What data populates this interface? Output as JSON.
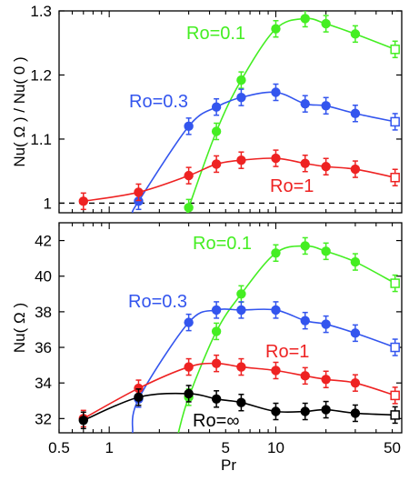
{
  "chart_data": [
    {
      "type": "line",
      "ylabel": "Nu( Ω ) / Nu( 0 )",
      "xscale": "log",
      "xlim": [
        0.5,
        57
      ],
      "ylim": [
        0.985,
        1.3
      ],
      "yticks": [
        1,
        1.1,
        1.2,
        1.3
      ],
      "ytick_labels": [
        "1",
        "1.1",
        "1.2",
        "1.3"
      ],
      "reference_line": {
        "y": 1,
        "style": "dashed"
      },
      "grid": false,
      "series": [
        {
          "name": "Ro=0.1",
          "color": "#44ee22",
          "x": [
            3,
            4.4,
            6.2,
            10,
            15,
            20,
            30,
            52
          ],
          "y": [
            0.993,
            1.112,
            1.192,
            1.272,
            1.288,
            1.28,
            1.264,
            1.24
          ],
          "open_last": true
        },
        {
          "name": "Ro=0.3",
          "color": "#3355ee",
          "x": [
            1.5,
            3,
            4.4,
            6.2,
            10,
            15,
            20,
            30,
            52
          ],
          "y": [
            1.003,
            1.12,
            1.15,
            1.165,
            1.173,
            1.155,
            1.152,
            1.14,
            1.127
          ],
          "open_last": true
        },
        {
          "name": "Ro=1",
          "color": "#ee2222",
          "x": [
            0.7,
            1.5,
            3,
            4.4,
            6.2,
            10,
            15,
            20,
            30,
            52
          ],
          "y": [
            1.003,
            1.017,
            1.043,
            1.061,
            1.067,
            1.07,
            1.062,
            1.057,
            1.053,
            1.04
          ],
          "open_last": true
        }
      ]
    },
    {
      "type": "line",
      "xlabel": "Pr",
      "ylabel": "Nu( Ω )",
      "xscale": "log",
      "xlim": [
        0.5,
        57
      ],
      "xticks": [
        0.5,
        1,
        5,
        10,
        50
      ],
      "xtick_labels": [
        "0.5",
        "1",
        "5",
        "10",
        "50"
      ],
      "ylim": [
        31.2,
        43
      ],
      "yticks": [
        32,
        34,
        36,
        38,
        40,
        42
      ],
      "ytick_labels": [
        "32",
        "34",
        "36",
        "38",
        "40",
        "42"
      ],
      "grid": false,
      "series": [
        {
          "name": "Ro=0.1",
          "color": "#44ee22",
          "x": [
            3,
            4.4,
            6.2,
            10,
            15,
            20,
            30,
            52
          ],
          "y": [
            33.2,
            36.9,
            39.0,
            41.3,
            41.7,
            41.4,
            40.8,
            39.6
          ],
          "open_last": true
        },
        {
          "name": "Ro=0.3",
          "color": "#3355ee",
          "x": [
            1.5,
            3,
            4.4,
            6.2,
            10,
            15,
            20,
            30,
            52
          ],
          "y": [
            33.1,
            37.4,
            38.1,
            38.1,
            38.1,
            37.5,
            37.3,
            36.8,
            36.0
          ],
          "open_last": true
        },
        {
          "name": "Ro=1",
          "color": "#ee2222",
          "x": [
            0.7,
            1.5,
            3,
            4.4,
            6.2,
            10,
            15,
            20,
            30,
            52
          ],
          "y": [
            32.0,
            33.7,
            34.9,
            35.1,
            34.9,
            34.7,
            34.4,
            34.2,
            34.0,
            33.3
          ],
          "open_last": true
        },
        {
          "name": "Ro=∞",
          "color": "#000000",
          "x": [
            0.7,
            1.5,
            3,
            4.4,
            6.2,
            10,
            15,
            20,
            30,
            52
          ],
          "y": [
            31.9,
            33.2,
            33.4,
            33.1,
            32.9,
            32.4,
            32.4,
            32.5,
            32.3,
            32.2
          ],
          "open_last": true
        }
      ]
    }
  ]
}
